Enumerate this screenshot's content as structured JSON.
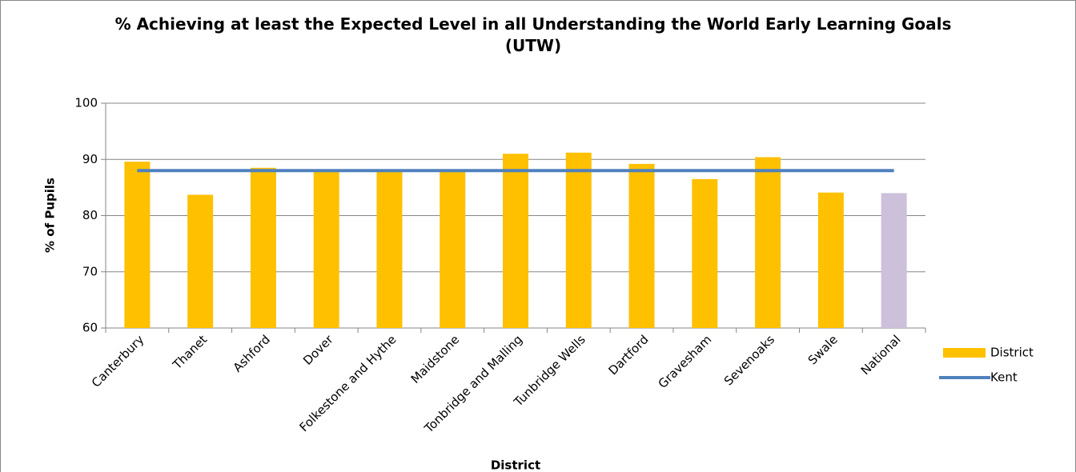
{
  "chart_data": {
    "type": "bar",
    "title": "% Achieving at least the Expected Level in all Understanding the World Early Learning Goals (UTW)",
    "x_label": "District",
    "y_label": "% of Pupils",
    "categories": [
      "Canterbury",
      "Thanet",
      "Ashford",
      "Dover",
      "Folkestone and Hythe",
      "Maidstone",
      "Tonbridge and Malling",
      "Tunbridge Wells",
      "Dartford",
      "Gravesham",
      "Sevenoaks",
      "Swale",
      "National"
    ],
    "series": [
      {
        "name": "District",
        "type": "bar",
        "color": "#ffc000",
        "colors": [
          "#ffc000",
          "#ffc000",
          "#ffc000",
          "#ffc000",
          "#ffc000",
          "#ffc000",
          "#ffc000",
          "#ffc000",
          "#ffc000",
          "#ffc000",
          "#ffc000",
          "#ffc000",
          "#ccc0da"
        ],
        "values": [
          89.6,
          83.7,
          88.5,
          88.0,
          88.0,
          88.0,
          91.0,
          91.2,
          89.2,
          86.5,
          90.4,
          84.1,
          84.0
        ]
      },
      {
        "name": "Kent",
        "type": "line",
        "color": "#4f81bd",
        "values": [
          88,
          88,
          88,
          88,
          88,
          88,
          88,
          88,
          88,
          88,
          88,
          88,
          88
        ]
      }
    ],
    "ylim": [
      60,
      100
    ],
    "yticks": [
      60,
      70,
      80,
      90,
      100
    ],
    "grid": true,
    "legend": "right"
  }
}
